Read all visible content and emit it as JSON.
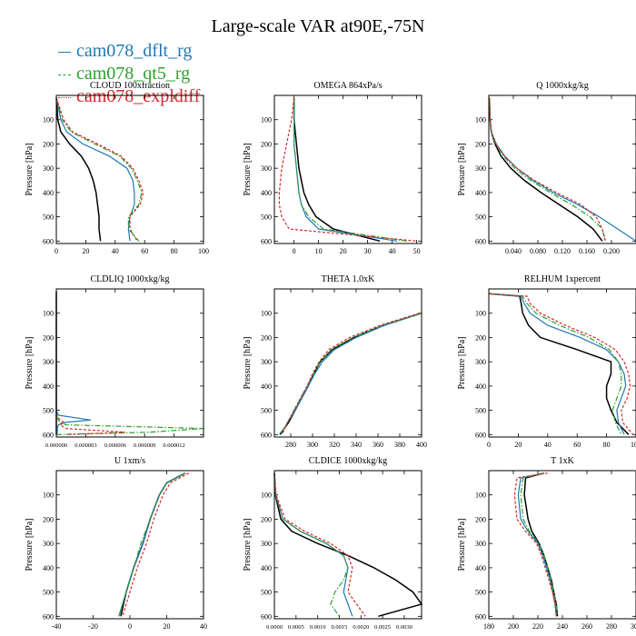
{
  "title": "Large-scale VAR at90E,-75N",
  "legend": [
    {
      "name": "cam078_dflt_rg",
      "color": "#1f77b4",
      "dash": "solid"
    },
    {
      "name": "cam078_qt5_rg",
      "color": "#2ca02c",
      "dash": "dashdot"
    },
    {
      "name": "cam078_expldiff",
      "color": "#d62728",
      "dash": "dotted"
    }
  ],
  "reference_series": {
    "color": "#000000"
  },
  "chart_data": [
    {
      "type": "line",
      "title": "CLOUD 100xfraction",
      "ylabel": "Pressure [hPa]",
      "xlim": [
        0,
        100
      ],
      "xticks": [
        0,
        20,
        40,
        60,
        80,
        100
      ],
      "xtick_labels": [
        "0",
        "20",
        "40",
        "60",
        "80",
        "100"
      ],
      "ylim": [
        0,
        610
      ],
      "yticks": [
        100,
        200,
        300,
        400,
        500,
        600
      ],
      "y": [
        10,
        100,
        150,
        200,
        250,
        300,
        350,
        400,
        450,
        500,
        550,
        600
      ],
      "series": [
        {
          "color": "#000000",
          "values": [
            0,
            1,
            3,
            9,
            17,
            22,
            25,
            27,
            28,
            29,
            29,
            30
          ]
        },
        {
          "name": "cam078_dflt_rg",
          "color": "#1f77b4",
          "values": [
            0,
            3,
            7,
            18,
            36,
            48,
            52,
            53,
            53,
            50,
            49,
            50
          ]
        },
        {
          "name": "cam078_qt5_rg",
          "color": "#2ca02c",
          "values": [
            0,
            4,
            10,
            26,
            43,
            51,
            55,
            58,
            56,
            49,
            49,
            56
          ]
        },
        {
          "name": "cam078_expldiff",
          "color": "#d62728",
          "values": [
            0,
            5,
            11,
            28,
            44,
            52,
            56,
            59,
            57,
            50,
            50,
            55
          ]
        }
      ]
    },
    {
      "type": "line",
      "title": "OMEGA  864xPa/s",
      "ylabel": "Pressure [hPa]",
      "xlim": [
        -8,
        52
      ],
      "xticks": [
        0,
        10,
        20,
        30,
        40,
        50
      ],
      "xtick_labels": [
        "0",
        "10",
        "20",
        "30",
        "40",
        "50"
      ],
      "ylim": [
        0,
        610
      ],
      "yticks": [
        100,
        200,
        300,
        400,
        500,
        600
      ],
      "y": [
        10,
        100,
        200,
        300,
        400,
        450,
        500,
        550,
        600
      ],
      "series": [
        {
          "color": "#000000",
          "values": [
            0,
            0,
            1,
            2,
            4,
            6,
            9,
            16,
            35
          ]
        },
        {
          "name": "cam078_dflt_rg",
          "color": "#1f77b4",
          "values": [
            0,
            0,
            0,
            1,
            2,
            3,
            5,
            10,
            42
          ]
        },
        {
          "name": "cam078_qt5_rg",
          "color": "#2ca02c",
          "values": [
            0,
            0,
            0,
            1,
            2,
            3,
            6,
            12,
            46
          ]
        },
        {
          "name": "cam078_expldiff",
          "color": "#d62728",
          "values": [
            0,
            -1,
            -3,
            -5,
            -6,
            -6,
            -5,
            -2,
            50
          ]
        }
      ]
    },
    {
      "type": "line",
      "title": "Q  1000xkg/kg",
      "ylabel": "Pressure [hPa]",
      "xlim": [
        0,
        0.24
      ],
      "xticks": [
        0.04,
        0.08,
        0.12,
        0.16,
        0.2
      ],
      "xtick_labels": [
        "0.040",
        "0.080",
        "0.120",
        "0.160",
        "0.200"
      ],
      "ylim": [
        0,
        610
      ],
      "yticks": [
        100,
        200,
        300,
        400,
        500,
        600
      ],
      "y": [
        10,
        100,
        150,
        200,
        250,
        300,
        350,
        400,
        450,
        500,
        550,
        600
      ],
      "series": [
        {
          "color": "#000000",
          "values": [
            0.001,
            0.002,
            0.004,
            0.01,
            0.02,
            0.036,
            0.058,
            0.085,
            0.115,
            0.145,
            0.17,
            0.185
          ]
        },
        {
          "name": "cam078_dflt_rg",
          "color": "#1f77b4",
          "values": [
            0.001,
            0.002,
            0.004,
            0.012,
            0.026,
            0.046,
            0.072,
            0.105,
            0.145,
            0.18,
            0.21,
            0.24
          ]
        },
        {
          "name": "cam078_qt5_rg",
          "color": "#2ca02c",
          "values": [
            0.001,
            0.002,
            0.004,
            0.011,
            0.024,
            0.042,
            0.068,
            0.1,
            0.135,
            0.165,
            0.185,
            0.19
          ]
        },
        {
          "name": "cam078_expldiff",
          "color": "#d62728",
          "values": [
            0.001,
            0.002,
            0.004,
            0.012,
            0.026,
            0.046,
            0.074,
            0.11,
            0.15,
            0.175,
            0.185,
            0.19
          ]
        }
      ]
    },
    {
      "type": "line",
      "title": "CLDLIQ  1000xkg/kg",
      "ylabel": "Pressure [hPa]",
      "xlim": [
        0,
        1.5e-05
      ],
      "xticks": [
        0,
        3e-06,
        6e-06,
        9e-06,
        1.2e-05
      ],
      "xtick_labels": [
        "0.000000",
        "0.000003",
        "0.000006",
        "0.000009",
        "0.000012"
      ],
      "ylim": [
        0,
        610
      ],
      "yticks": [
        100,
        200,
        300,
        400,
        500,
        600
      ],
      "y": [
        10,
        500,
        520,
        540,
        550,
        560,
        575,
        590,
        600
      ],
      "series": [
        {
          "color": "#000000",
          "values": [
            0,
            0,
            0,
            0,
            0,
            0,
            0,
            0,
            0
          ]
        },
        {
          "name": "cam078_dflt_rg",
          "color": "#1f77b4",
          "values": [
            0,
            0,
            2e-07,
            3.5e-06,
            8e-07,
            2e-07,
            1e-07,
            1e-07,
            0
          ]
        },
        {
          "name": "cam078_qt5_rg",
          "color": "#2ca02c",
          "values": [
            0,
            0,
            0,
            2e-07,
            4e-07,
            1e-06,
            1.5e-05,
            9.5e-06,
            0
          ]
        },
        {
          "name": "cam078_expldiff",
          "color": "#d62728",
          "values": [
            0,
            0,
            0,
            4e-07,
            8e-07,
            4e-07,
            1e-06,
            7e-06,
            1e-06
          ]
        }
      ]
    },
    {
      "type": "line",
      "title": "THETA  1.0xK",
      "ylabel": "Pressure [hPa]",
      "xlim": [
        265,
        400
      ],
      "xticks": [
        280,
        300,
        320,
        340,
        360,
        380,
        400
      ],
      "xtick_labels": [
        "280",
        "300",
        "320",
        "340",
        "360",
        "380",
        "400"
      ],
      "ylim": [
        0,
        610
      ],
      "yticks": [
        100,
        200,
        300,
        400,
        500,
        600
      ],
      "y": [
        100,
        150,
        200,
        250,
        300,
        350,
        400,
        450,
        500,
        550,
        600
      ],
      "series": [
        {
          "color": "#000000",
          "values": [
            400,
            365,
            338,
            318,
            307,
            301,
            296,
            290,
            284,
            278,
            270
          ]
        },
        {
          "name": "cam078_dflt_rg",
          "color": "#1f77b4",
          "values": [
            400,
            366,
            340,
            320,
            309,
            302,
            296,
            290,
            284,
            277,
            271
          ]
        },
        {
          "name": "cam078_qt5_rg",
          "color": "#2ca02c",
          "values": [
            400,
            364,
            337,
            317,
            307,
            301,
            295,
            289,
            283,
            277,
            271
          ]
        },
        {
          "name": "cam078_expldiff",
          "color": "#d62728",
          "values": [
            398,
            362,
            334,
            315,
            306,
            300,
            295,
            289,
            283,
            277,
            272
          ]
        }
      ]
    },
    {
      "type": "line",
      "title": "RELHUM  1xpercent",
      "ylabel": "Pressure [hPa]",
      "xlim": [
        0,
        100
      ],
      "xticks": [
        0,
        20,
        40,
        60,
        80,
        100
      ],
      "xtick_labels": [
        "0",
        "20",
        "40",
        "60",
        "80",
        "100"
      ],
      "ylim": [
        0,
        610
      ],
      "yticks": [
        100,
        200,
        300,
        400,
        500,
        600
      ],
      "y": [
        20,
        30,
        60,
        100,
        150,
        200,
        250,
        300,
        350,
        400,
        450,
        500,
        550,
        600
      ],
      "series": [
        {
          "color": "#000000",
          "values": [
            0,
            21,
            22,
            23,
            27,
            35,
            60,
            83,
            83,
            80,
            80,
            83,
            87,
            95
          ]
        },
        {
          "name": "cam078_dflt_rg",
          "color": "#1f77b4",
          "values": [
            0,
            22,
            24,
            28,
            40,
            62,
            80,
            88,
            92,
            93,
            90,
            87,
            88,
            92
          ]
        },
        {
          "name": "cam078_qt5_rg",
          "color": "#2ca02c",
          "values": [
            0,
            23,
            26,
            32,
            48,
            68,
            82,
            88,
            90,
            90,
            87,
            84,
            86,
            90
          ]
        },
        {
          "name": "cam078_expldiff",
          "color": "#d62728",
          "values": [
            0,
            26,
            28,
            35,
            52,
            72,
            86,
            92,
            95,
            96,
            94,
            90,
            91,
            98
          ]
        }
      ]
    },
    {
      "type": "line",
      "title": "U  1xm/s",
      "ylabel": "Pressure [hPa]",
      "xlim": [
        -40,
        40
      ],
      "xticks": [
        -40,
        -20,
        0,
        20,
        40
      ],
      "xtick_labels": [
        "-40",
        "-20",
        "0",
        "20",
        "40"
      ],
      "ylim": [
        0,
        610
      ],
      "yticks": [
        100,
        200,
        300,
        400,
        500,
        600
      ],
      "y": [
        10,
        50,
        100,
        200,
        300,
        400,
        500,
        600
      ],
      "series": [
        {
          "color": "#000000",
          "values": [
            30,
            20,
            16,
            11,
            7,
            2,
            -2,
            -5
          ]
        },
        {
          "name": "cam078_dflt_rg",
          "color": "#1f77b4",
          "values": [
            30,
            20,
            16,
            11,
            7,
            2,
            -2,
            -6
          ]
        },
        {
          "name": "cam078_qt5_rg",
          "color": "#2ca02c",
          "values": [
            30,
            20,
            16,
            11,
            6,
            2,
            -2,
            -6
          ]
        },
        {
          "name": "cam078_expldiff",
          "color": "#d62728",
          "values": [
            32,
            22,
            18,
            13,
            9,
            4,
            0,
            -4
          ]
        }
      ]
    },
    {
      "type": "line",
      "title": "CLDICE  1000xkg/kg",
      "ylabel": "Pressure [hPa]",
      "xlim": [
        0,
        0.0034
      ],
      "xticks": [
        0,
        0.0005,
        0.001,
        0.0015,
        0.002,
        0.0025,
        0.003
      ],
      "xtick_labels": [
        "0.0000",
        "0.0005",
        "0.0010",
        "0.0015",
        "0.0020",
        "0.0025",
        "0.0030"
      ],
      "ylim": [
        0,
        610
      ],
      "yticks": [
        100,
        200,
        300,
        400,
        500,
        600
      ],
      "y": [
        10,
        100,
        200,
        250,
        300,
        350,
        400,
        450,
        500,
        550,
        600
      ],
      "series": [
        {
          "color": "#000000",
          "values": [
            0,
            2e-05,
            0.00015,
            0.0004,
            0.001,
            0.0017,
            0.0023,
            0.0028,
            0.0032,
            0.0034,
            0.0024
          ]
        },
        {
          "name": "cam078_dflt_rg",
          "color": "#1f77b4",
          "values": [
            0,
            3e-05,
            0.0002,
            0.0006,
            0.0012,
            0.0016,
            0.0017,
            0.00165,
            0.0016,
            0.0017,
            0.0018
          ]
        },
        {
          "name": "cam078_qt5_rg",
          "color": "#2ca02c",
          "values": [
            0,
            3e-05,
            0.0002,
            0.0006,
            0.0012,
            0.0016,
            0.0017,
            0.0016,
            0.0014,
            0.0013,
            0.0015
          ]
        },
        {
          "name": "cam078_expldiff",
          "color": "#d62728",
          "values": [
            0,
            4e-05,
            0.00025,
            0.0007,
            0.0013,
            0.0017,
            0.0018,
            0.00175,
            0.0017,
            0.0019,
            0.0021
          ]
        }
      ]
    },
    {
      "type": "line",
      "title": "T  1xK",
      "ylabel": "Pressure [hPa]",
      "xlim": [
        180,
        300
      ],
      "xticks": [
        180,
        200,
        220,
        240,
        260,
        280,
        300
      ],
      "xtick_labels": [
        "180",
        "200",
        "220",
        "240",
        "260",
        "280",
        "300"
      ],
      "ylim": [
        0,
        610
      ],
      "yticks": [
        100,
        200,
        300,
        400,
        500,
        600
      ],
      "y": [
        10,
        30,
        100,
        200,
        250,
        300,
        350,
        400,
        450,
        500,
        550,
        600
      ],
      "series": [
        {
          "color": "#000000",
          "values": [
            225,
            210,
            209,
            212,
            215,
            221,
            225,
            228,
            231,
            233,
            235,
            236
          ]
        },
        {
          "name": "cam078_dflt_rg",
          "color": "#1f77b4",
          "values": [
            225,
            206,
            204,
            206,
            212,
            220,
            224,
            227,
            230,
            232,
            234,
            235
          ]
        },
        {
          "name": "cam078_qt5_rg",
          "color": "#2ca02c",
          "values": [
            225,
            208,
            206,
            208,
            213,
            221,
            225,
            228,
            231,
            233,
            235,
            236
          ]
        },
        {
          "name": "cam078_expldiff",
          "color": "#d62728",
          "values": [
            228,
            203,
            201,
            203,
            210,
            219,
            223,
            226,
            229,
            232,
            234,
            235
          ]
        }
      ]
    }
  ]
}
